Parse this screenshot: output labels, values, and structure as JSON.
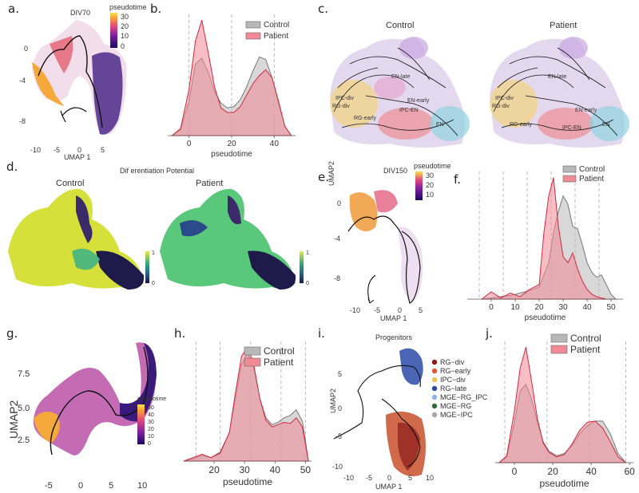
{
  "panel_labels": {
    "a": "a.",
    "b": "b.",
    "c": "c.",
    "d": "d.",
    "e": "e.",
    "f": "f.",
    "g": "g.",
    "h": "h.",
    "i": "i.",
    "j": "j."
  },
  "panel_a": {
    "title": "DIV70",
    "xlabel": "UMAP 1",
    "xticks": [
      "-10",
      "-5",
      "0",
      "5"
    ],
    "yticks": [
      "0",
      "-4",
      "-8"
    ],
    "legend_title": "pseudotime",
    "legend_ticks": [
      "30",
      "20",
      "10",
      "0"
    ]
  },
  "panel_c": {
    "left_title": "Control",
    "right_title": "Patient",
    "left_labels": [
      "EN-late",
      "EN-early",
      "IPC-div",
      "RG-div",
      "IPC-EN",
      "RG-early",
      "EN"
    ],
    "right_labels": [
      "EN-late",
      "IPC-div",
      "RG-div",
      "EN-early",
      "RG-early",
      "IPC-EN",
      "EN"
    ]
  },
  "panel_d": {
    "title": "Dif erentiation Potential",
    "left_title": "Control",
    "right_title": "Patient",
    "colorbar_ticks": [
      "1",
      "0"
    ]
  },
  "panel_e": {
    "title": "DIV150",
    "xlabel": "UMAP 1",
    "ylabel": "UMAP2",
    "xticks": [
      "-10",
      "-5",
      "0",
      "5"
    ],
    "yticks": [
      "0",
      "-4",
      "-8"
    ],
    "legend_title": "pseudotime",
    "legend_ticks": [
      "30",
      "20",
      "10"
    ]
  },
  "panel_g": {
    "ylabel": "UMAP2",
    "xticks": [
      "-5",
      "0",
      "5",
      "10"
    ],
    "yticks": [
      "7.5",
      "5.0",
      "2.5"
    ],
    "legend_title": "pseudotime",
    "legend_ticks": [
      "50",
      "40",
      "30",
      "20",
      "10",
      "0"
    ]
  },
  "panel_i": {
    "title": "Progenitors",
    "xlabel": "UMAP 1",
    "ylabel": "UMAP2",
    "xticks": [
      "-10",
      "-5",
      "0",
      "5",
      "10"
    ],
    "yticks": [
      "5",
      "0",
      "-5",
      "-10"
    ],
    "legend": [
      {
        "label": "RG−div",
        "color": "#8b1a1a"
      },
      {
        "label": "RG−early",
        "color": "#e4572e"
      },
      {
        "label": "IPC−div",
        "color": "#f2c14e"
      },
      {
        "label": "RG−late",
        "color": "#2b4aa8"
      },
      {
        "label": "MGE−RG_IPC",
        "color": "#8fb3e8"
      },
      {
        "label": "MGE−RG",
        "color": "#2e6b3a"
      },
      {
        "label": "MGE−IPC",
        "color": "#a8a8a8"
      }
    ]
  },
  "chart_data": [
    {
      "id": "b",
      "type": "area",
      "xlabel": "pseudotime",
      "xlim": [
        -10,
        50
      ],
      "xticks": [
        0,
        20,
        40
      ],
      "legend": [
        "Control",
        "Patient"
      ],
      "vlines": [
        0,
        20,
        40
      ],
      "series": [
        {
          "name": "Control",
          "color": "#b8b8b8",
          "x": [
            -8,
            -4,
            0,
            3,
            6,
            9,
            12,
            15,
            18,
            21,
            24,
            27,
            30,
            33,
            36,
            39,
            42,
            45,
            48
          ],
          "y": [
            0,
            0.05,
            0.3,
            0.62,
            0.67,
            0.55,
            0.38,
            0.28,
            0.24,
            0.25,
            0.31,
            0.42,
            0.56,
            0.68,
            0.66,
            0.5,
            0.28,
            0.08,
            0
          ]
        },
        {
          "name": "Patient",
          "color": "#f08a95",
          "x": [
            -8,
            -4,
            0,
            3,
            6,
            9,
            12,
            15,
            18,
            21,
            24,
            27,
            30,
            33,
            36,
            39,
            42,
            45,
            48
          ],
          "y": [
            0,
            0.06,
            0.4,
            0.82,
            1.0,
            0.72,
            0.42,
            0.24,
            0.2,
            0.2,
            0.25,
            0.35,
            0.45,
            0.52,
            0.57,
            0.5,
            0.3,
            0.08,
            0
          ]
        }
      ]
    },
    {
      "id": "f",
      "type": "area",
      "xlabel": "pseudotime",
      "xlim": [
        -10,
        55
      ],
      "xticks": [
        0,
        10,
        20,
        30,
        40,
        50
      ],
      "legend": [
        "Control",
        "Patient"
      ],
      "vlines": [
        -5,
        5,
        15,
        25,
        35,
        45
      ],
      "series": [
        {
          "name": "Control",
          "color": "#b8b8b8",
          "x": [
            -4,
            0,
            4,
            8,
            12,
            16,
            20,
            24,
            26,
            28,
            30,
            32,
            34,
            36,
            38,
            40,
            42,
            44,
            46,
            48,
            50,
            52
          ],
          "y": [
            0,
            0.01,
            0.02,
            0.03,
            0.05,
            0.07,
            0.1,
            0.3,
            0.55,
            0.72,
            0.85,
            0.78,
            0.6,
            0.58,
            0.45,
            0.3,
            0.22,
            0.18,
            0.2,
            0.12,
            0.04,
            0
          ]
        },
        {
          "name": "Patient",
          "color": "#f08a95",
          "x": [
            -4,
            0,
            4,
            8,
            12,
            16,
            20,
            22,
            24,
            26,
            28,
            30,
            32,
            34,
            36,
            38,
            40,
            42,
            44,
            46,
            48
          ],
          "y": [
            0,
            0.06,
            0.01,
            0.05,
            0.02,
            0.08,
            0.12,
            0.55,
            0.85,
            1.0,
            0.6,
            0.35,
            0.3,
            0.38,
            0.25,
            0.15,
            0.08,
            0.04,
            0.02,
            0.01,
            0
          ]
        }
      ]
    },
    {
      "id": "h",
      "type": "area",
      "xlabel": "pseudotime",
      "xlim": [
        10,
        52
      ],
      "xticks": [
        20,
        30,
        40,
        50
      ],
      "legend": [
        "Control",
        "Patient"
      ],
      "vlines": [
        14,
        22,
        32,
        42,
        50
      ],
      "series": [
        {
          "name": "Control",
          "color": "#b8b8b8",
          "x": [
            10,
            13,
            16,
            19,
            22,
            25,
            27,
            29,
            31,
            33,
            35,
            37,
            39,
            41,
            43,
            45,
            47,
            49,
            51
          ],
          "y": [
            0,
            0.02,
            0.05,
            0.03,
            0.08,
            0.25,
            0.55,
            0.85,
            0.95,
            0.82,
            0.55,
            0.38,
            0.32,
            0.34,
            0.38,
            0.4,
            0.45,
            0.35,
            0
          ]
        },
        {
          "name": "Patient",
          "color": "#f08a95",
          "x": [
            10,
            13,
            16,
            19,
            22,
            25,
            27,
            29,
            31,
            33,
            35,
            37,
            39,
            41,
            43,
            45,
            47,
            49,
            51
          ],
          "y": [
            0,
            0.03,
            0.06,
            0.03,
            0.07,
            0.25,
            0.6,
            0.92,
            1.0,
            0.85,
            0.55,
            0.36,
            0.3,
            0.32,
            0.34,
            0.33,
            0.38,
            0.3,
            0
          ]
        }
      ]
    },
    {
      "id": "j",
      "type": "area",
      "xlabel": "pseudotime",
      "xlim": [
        -10,
        62
      ],
      "xticks": [
        0,
        20,
        40,
        60
      ],
      "legend": [
        "Control",
        "Patient"
      ],
      "vlines": [
        -5,
        17,
        39,
        58
      ],
      "series": [
        {
          "name": "Control",
          "color": "#b8b8b8",
          "x": [
            -8,
            -4,
            0,
            3,
            6,
            9,
            12,
            15,
            18,
            22,
            26,
            30,
            34,
            38,
            42,
            46,
            50,
            54,
            58
          ],
          "y": [
            0,
            0.05,
            0.35,
            0.62,
            0.68,
            0.55,
            0.35,
            0.18,
            0.1,
            0.06,
            0.08,
            0.15,
            0.25,
            0.32,
            0.36,
            0.36,
            0.25,
            0.08,
            0
          ]
        },
        {
          "name": "Patient",
          "color": "#f08a95",
          "x": [
            -8,
            -4,
            0,
            3,
            6,
            9,
            12,
            15,
            18,
            22,
            26,
            30,
            34,
            38,
            42,
            46,
            50,
            54,
            58
          ],
          "y": [
            0,
            0.06,
            0.45,
            0.82,
            1.0,
            0.7,
            0.38,
            0.17,
            0.09,
            0.05,
            0.07,
            0.16,
            0.28,
            0.35,
            0.36,
            0.3,
            0.18,
            0.05,
            0
          ]
        }
      ]
    }
  ]
}
